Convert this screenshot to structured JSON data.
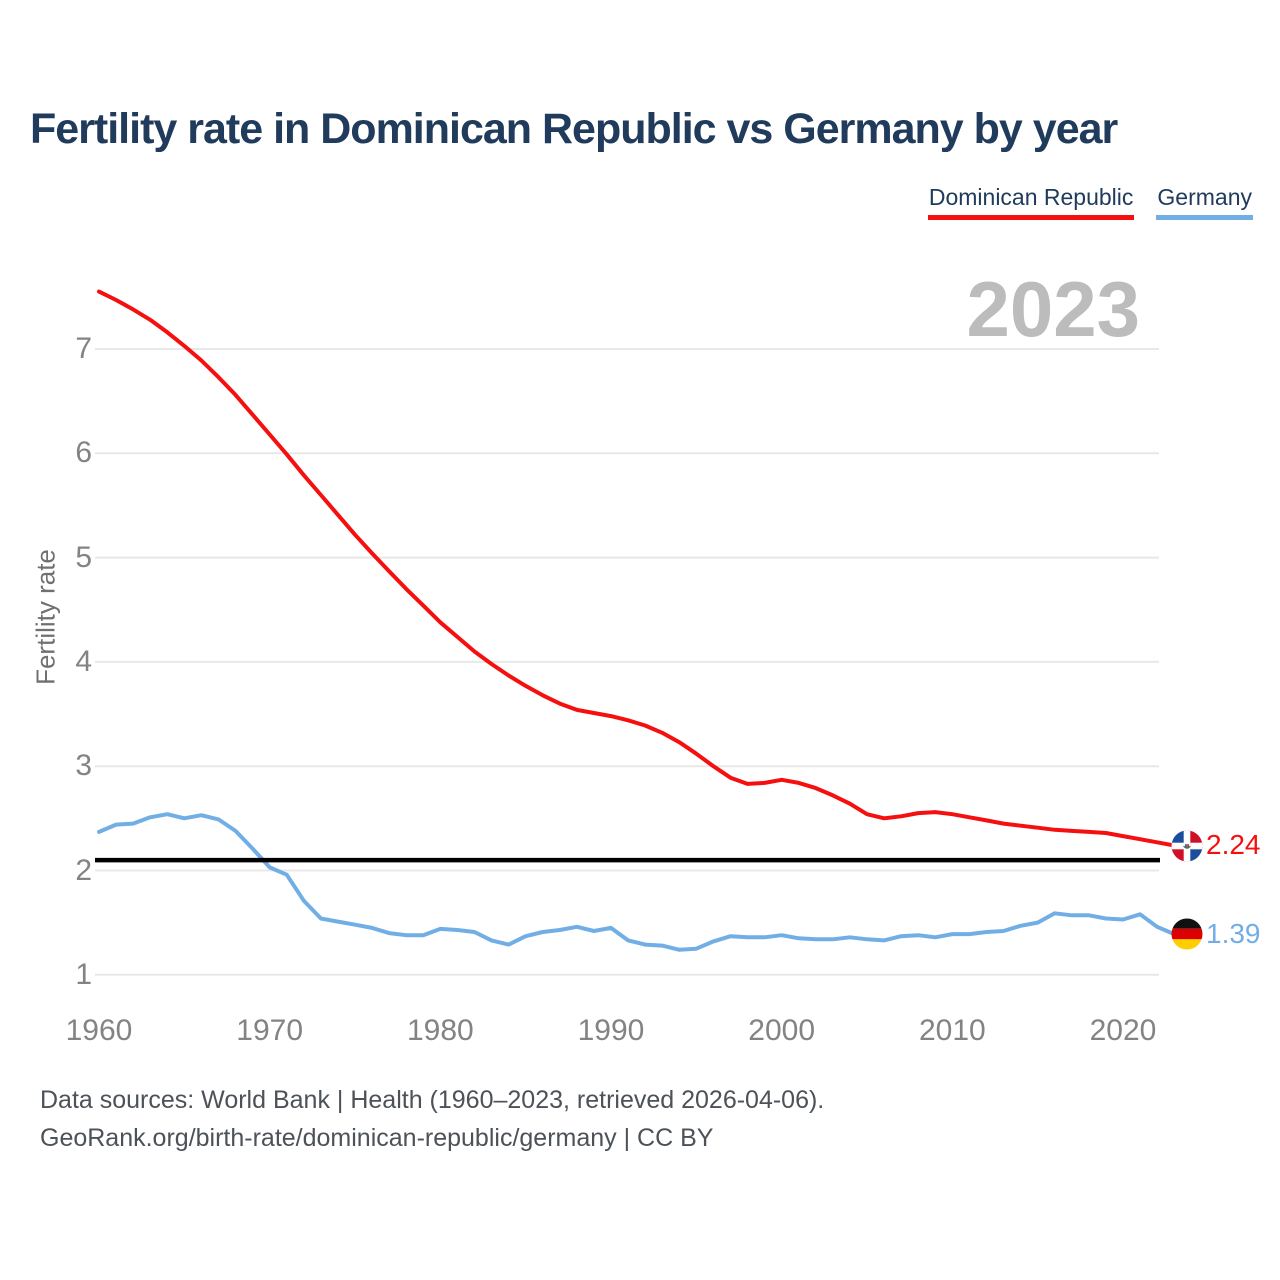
{
  "title": "Fertility rate in Dominican Republic vs Germany by year",
  "legend": [
    {
      "label": "Dominican Republic",
      "color": "#f50f0f"
    },
    {
      "label": "Germany",
      "color": "#72aee6"
    }
  ],
  "watermark": "2023",
  "end_labels": [
    {
      "series": "Dominican Republic",
      "value": "2.24"
    },
    {
      "series": "Germany",
      "value": "1.39"
    }
  ],
  "footer": {
    "line1": "Data sources: World Bank | Health (1960–2023, retrieved 2026-04-06).",
    "line2": "GeoRank.org/birth-rate/dominican-republic/germany | CC BY"
  },
  "chart_data": {
    "type": "line",
    "title": "Fertility rate in Dominican Republic vs Germany by year",
    "xlabel": "",
    "ylabel": "Fertility rate",
    "ylim": [
      1,
      7
    ],
    "xlim": [
      1960,
      2023
    ],
    "y_ticks": [
      1,
      2,
      3,
      4,
      5,
      6,
      7
    ],
    "x_ticks": [
      1960,
      1970,
      1980,
      1990,
      2000,
      2010,
      2020
    ],
    "grid": "horizontal",
    "legend_position": "top-right",
    "watermark_year": "2023",
    "reference_line": {
      "value": 2.1,
      "color": "#000000"
    },
    "x": [
      1960,
      1961,
      1962,
      1963,
      1964,
      1965,
      1966,
      1967,
      1968,
      1969,
      1970,
      1971,
      1972,
      1973,
      1974,
      1975,
      1976,
      1977,
      1978,
      1979,
      1980,
      1981,
      1982,
      1983,
      1984,
      1985,
      1986,
      1987,
      1988,
      1989,
      1990,
      1991,
      1992,
      1993,
      1994,
      1995,
      1996,
      1997,
      1998,
      1999,
      2000,
      2001,
      2002,
      2003,
      2004,
      2005,
      2006,
      2007,
      2008,
      2009,
      2010,
      2011,
      2012,
      2013,
      2014,
      2015,
      2016,
      2017,
      2018,
      2019,
      2020,
      2021,
      2022,
      2023
    ],
    "series": [
      {
        "name": "Dominican Republic",
        "color": "#f50f0f",
        "end_label": "2.24",
        "values": [
          7.55,
          7.47,
          7.38,
          7.28,
          7.16,
          7.03,
          6.89,
          6.73,
          6.56,
          6.37,
          6.18,
          5.99,
          5.79,
          5.6,
          5.41,
          5.22,
          5.04,
          4.87,
          4.7,
          4.54,
          4.38,
          4.24,
          4.1,
          3.98,
          3.87,
          3.77,
          3.68,
          3.6,
          3.54,
          3.51,
          3.48,
          3.44,
          3.39,
          3.32,
          3.23,
          3.12,
          3.0,
          2.89,
          2.83,
          2.84,
          2.87,
          2.84,
          2.79,
          2.72,
          2.64,
          2.54,
          2.5,
          2.52,
          2.55,
          2.56,
          2.54,
          2.51,
          2.48,
          2.45,
          2.43,
          2.41,
          2.39,
          2.38,
          2.37,
          2.36,
          2.33,
          2.3,
          2.27,
          2.24
        ]
      },
      {
        "name": "Germany",
        "color": "#72aee6",
        "end_label": "1.39",
        "values": [
          2.37,
          2.44,
          2.45,
          2.51,
          2.54,
          2.5,
          2.53,
          2.49,
          2.38,
          2.21,
          2.03,
          1.96,
          1.71,
          1.54,
          1.51,
          1.48,
          1.45,
          1.4,
          1.38,
          1.38,
          1.44,
          1.43,
          1.41,
          1.33,
          1.29,
          1.37,
          1.41,
          1.43,
          1.46,
          1.42,
          1.45,
          1.33,
          1.29,
          1.28,
          1.24,
          1.25,
          1.32,
          1.37,
          1.36,
          1.36,
          1.38,
          1.35,
          1.34,
          1.34,
          1.36,
          1.34,
          1.33,
          1.37,
          1.38,
          1.36,
          1.39,
          1.39,
          1.41,
          1.42,
          1.47,
          1.5,
          1.59,
          1.57,
          1.57,
          1.54,
          1.53,
          1.58,
          1.46,
          1.39
        ]
      }
    ]
  }
}
